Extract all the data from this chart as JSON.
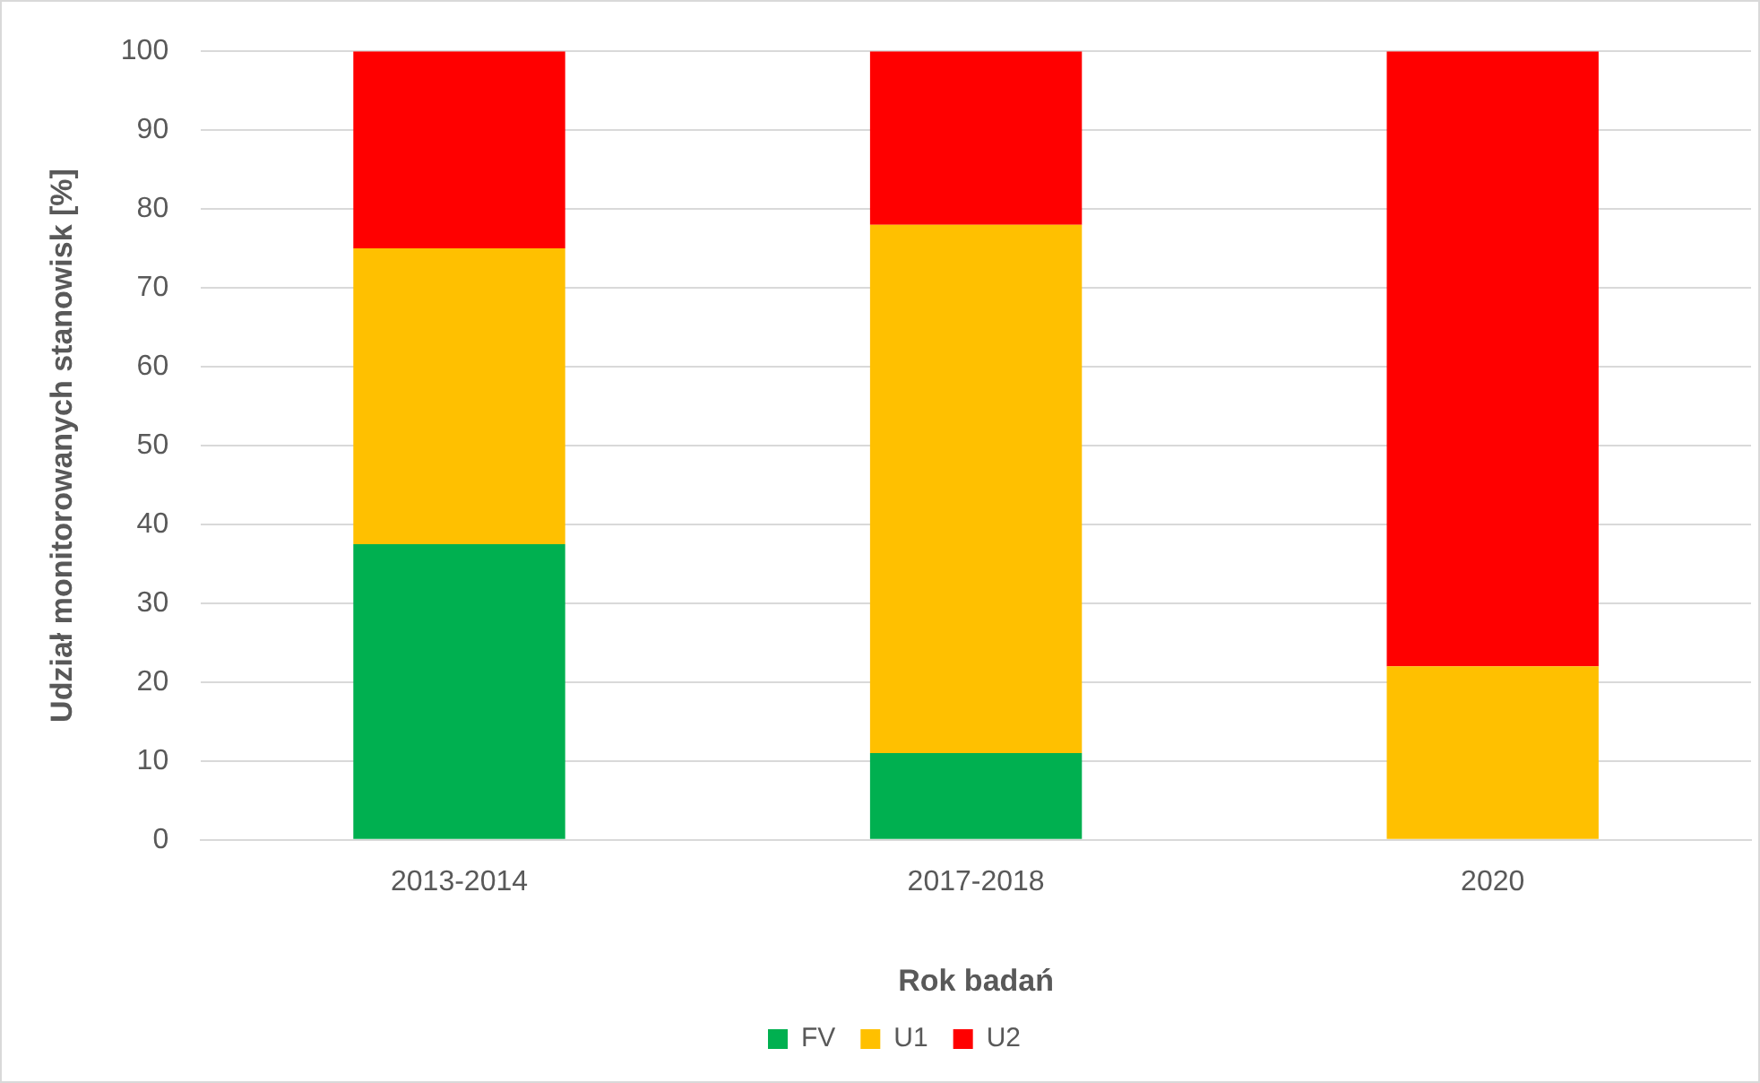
{
  "chart_data": {
    "type": "bar",
    "stacked": true,
    "xlabel": "Rok badań",
    "ylabel": "Udział monitorowanych stanowisk [%]",
    "categories": [
      "2013-2014",
      "2017-2018",
      "2020"
    ],
    "series": [
      {
        "name": "FV",
        "color": "#00b050",
        "values": [
          37.5,
          11,
          0
        ]
      },
      {
        "name": "U1",
        "color": "#ffc000",
        "values": [
          37.5,
          67,
          22
        ]
      },
      {
        "name": "U2",
        "color": "#ff0000",
        "values": [
          25,
          22,
          78
        ]
      }
    ],
    "ylim": [
      0,
      100
    ],
    "yticks": [
      0,
      10,
      20,
      30,
      40,
      50,
      60,
      70,
      80,
      90,
      100
    ],
    "grid": "y",
    "legend": "bottom"
  }
}
